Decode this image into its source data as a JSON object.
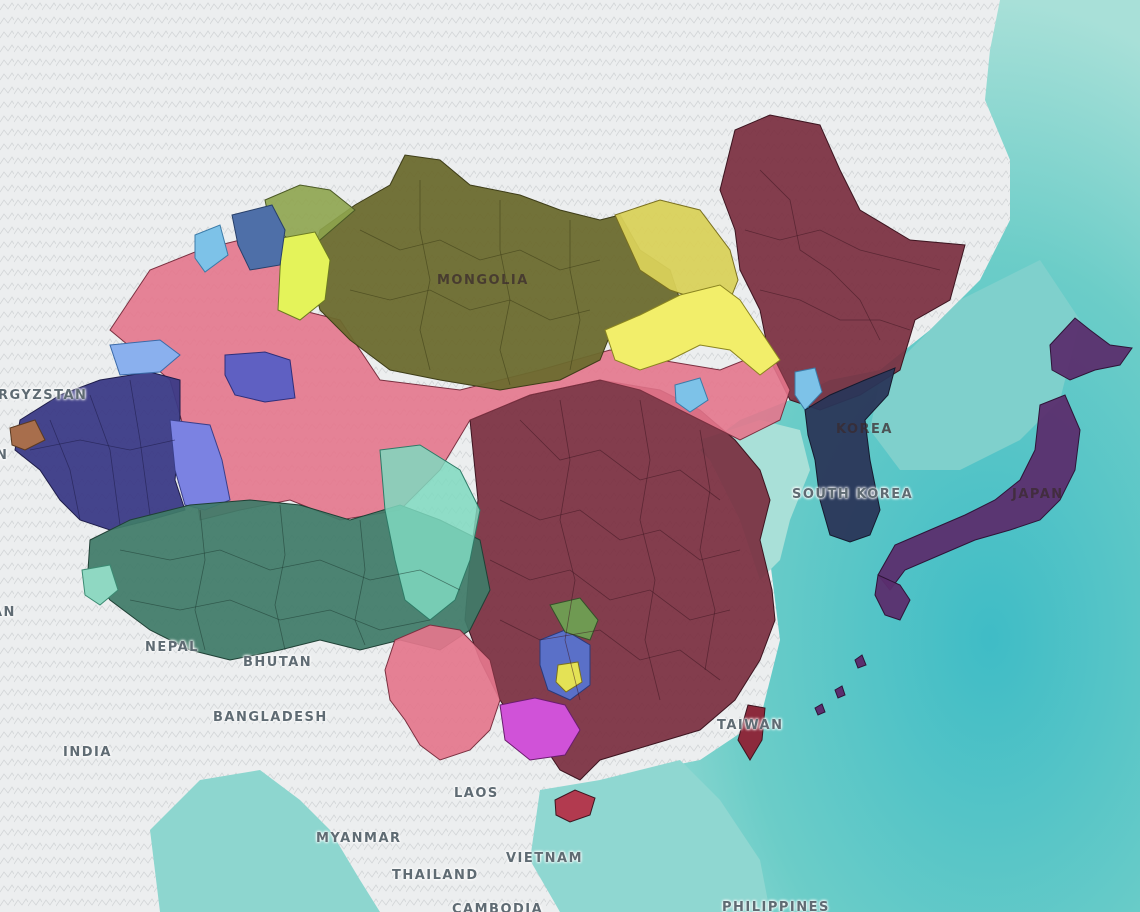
{
  "map": {
    "labels": {
      "kyrgyzstan": "RGYZSTAN",
      "mongolia": "MONGOLIA",
      "korea_north": "KOREA",
      "south_korea": "SOUTH KOREA",
      "japan": "JAPAN",
      "nepal": "NEPAL",
      "bhutan": "BHUTAN",
      "bangladesh": "BANGLADESH",
      "india": "INDIA",
      "laos": "LAOS",
      "myanmar": "MYANMAR",
      "vietnam": "VIETNAM",
      "thailand": "THAILAND",
      "taiwan": "TAIWAN",
      "cambodia": "CAMBODIA",
      "philippines": "PHILIPPINES",
      "edge_left": "AN",
      "edge_left_mid": "N"
    },
    "colors": {
      "land_bg": "#e9ebec",
      "sea": "#8fd4d0",
      "sea_deep": "#4fc3c9",
      "han_maroon": "#7a2e3f",
      "mongolia_olive": "#6b6a2e",
      "inner_mongolia_yellow": "#d9d15a",
      "bright_yellow": "#f2ee6a",
      "tibetan_green": "#3f7b68",
      "uyghur_navy": "#3b3a86",
      "kazakh_blue": "#7b82e2",
      "pink_mixed": "#e4768c",
      "korea_navy": "#2a3658",
      "japan_purple": "#5b2e6e",
      "light_blue": "#7dc2e8",
      "teal_light": "#7fd9c0",
      "magenta": "#d052d8",
      "brown": "#a86e4c"
    }
  }
}
